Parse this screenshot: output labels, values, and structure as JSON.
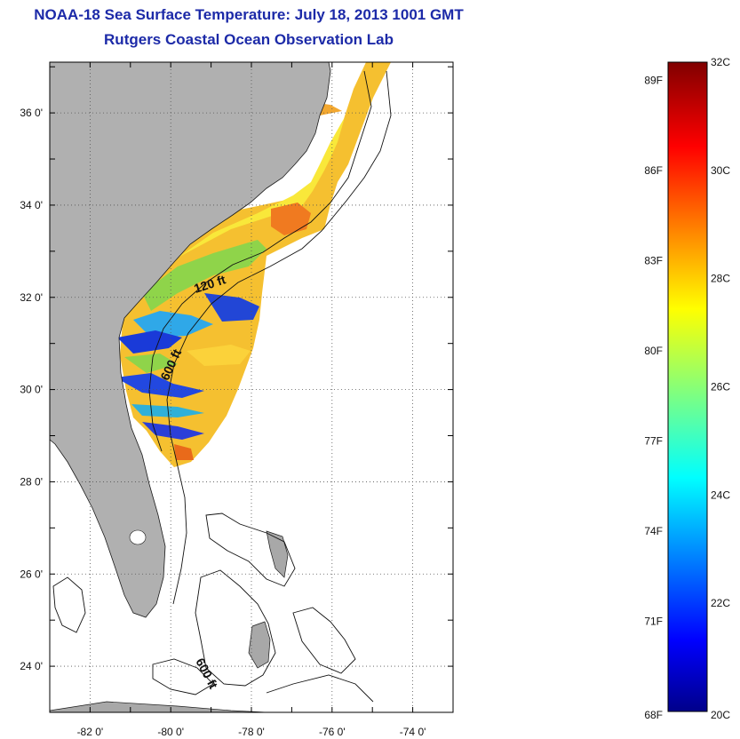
{
  "header": {
    "title": "NOAA-18 Sea Surface Temperature:  July 18, 2013 1001 GMT",
    "subtitle": "Rutgers Coastal Ocean Observation Lab"
  },
  "map": {
    "lon_range": [
      -83,
      -73
    ],
    "lat_range": [
      23,
      37.1
    ],
    "lon_ticks": [
      -82,
      -80,
      -78,
      -76,
      -74
    ],
    "lat_ticks": [
      24,
      26,
      28,
      30,
      32,
      34,
      36
    ],
    "lon_labels": [
      "-82 0'",
      "-80 0'",
      "-78 0'",
      "-76 0'",
      "-74 0'"
    ],
    "lat_labels": [
      "24 0'",
      "26 0'",
      "28 0'",
      "30 0'",
      "32 0'",
      "34 0'",
      "36 0'"
    ],
    "contour_labels": [
      {
        "text": "120 ft",
        "lon": -79.0,
        "lat": 32.2,
        "angle": -18
      },
      {
        "text": "600 ft",
        "lon": -79.9,
        "lat": 30.5,
        "angle": -65
      },
      {
        "text": "600 ft",
        "lon": -79.2,
        "lat": 23.8,
        "angle": 62
      }
    ],
    "land_color": "#b0b0b0"
  },
  "colorbar": {
    "range_c": [
      20,
      32
    ],
    "celsius_ticks": [
      20,
      22,
      24,
      26,
      28,
      30,
      32
    ],
    "celsius_labels": [
      "20C",
      "22C",
      "24C",
      "26C",
      "28C",
      "30C",
      "32C"
    ],
    "fahrenheit_ticks": [
      68,
      71,
      74,
      77,
      80,
      83,
      86,
      89
    ],
    "fahrenheit_labels": [
      "68F",
      "71F",
      "74F",
      "77F",
      "80F",
      "83F",
      "86F",
      "89F"
    ]
  }
}
